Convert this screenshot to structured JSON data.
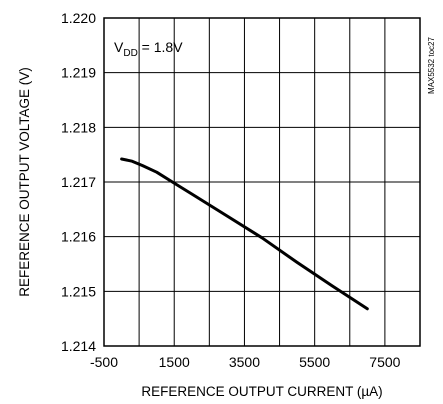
{
  "chart_data": {
    "type": "line",
    "xlabel": "REFERENCE OUTPUT CURRENT (µA)",
    "ylabel": "REFERENCE OUTPUT VOLTAGE (V)",
    "xlim": [
      -500,
      8500
    ],
    "ylim": [
      1.214,
      1.22
    ],
    "x_ticks": [
      "-500",
      "1500",
      "3500",
      "5500",
      "7500"
    ],
    "y_ticks": [
      "1.220",
      "1.219",
      "1.218",
      "1.217",
      "1.216",
      "1.215",
      "1.214"
    ],
    "grid": true,
    "annotation": {
      "main": "V",
      "sub": "DD",
      "rest": " = 1.8V"
    },
    "figure_code": "MAX5532 toc27",
    "series": [
      {
        "color": "#000000",
        "x": [
          0,
          300,
          600,
          1000,
          1500,
          2000,
          3000,
          4000,
          5000,
          6000,
          7000
        ],
        "y": [
          1.21742,
          1.21738,
          1.2173,
          1.21718,
          1.21698,
          1.21678,
          1.21638,
          1.21598,
          1.21553,
          1.2151,
          1.21468
        ]
      }
    ]
  }
}
